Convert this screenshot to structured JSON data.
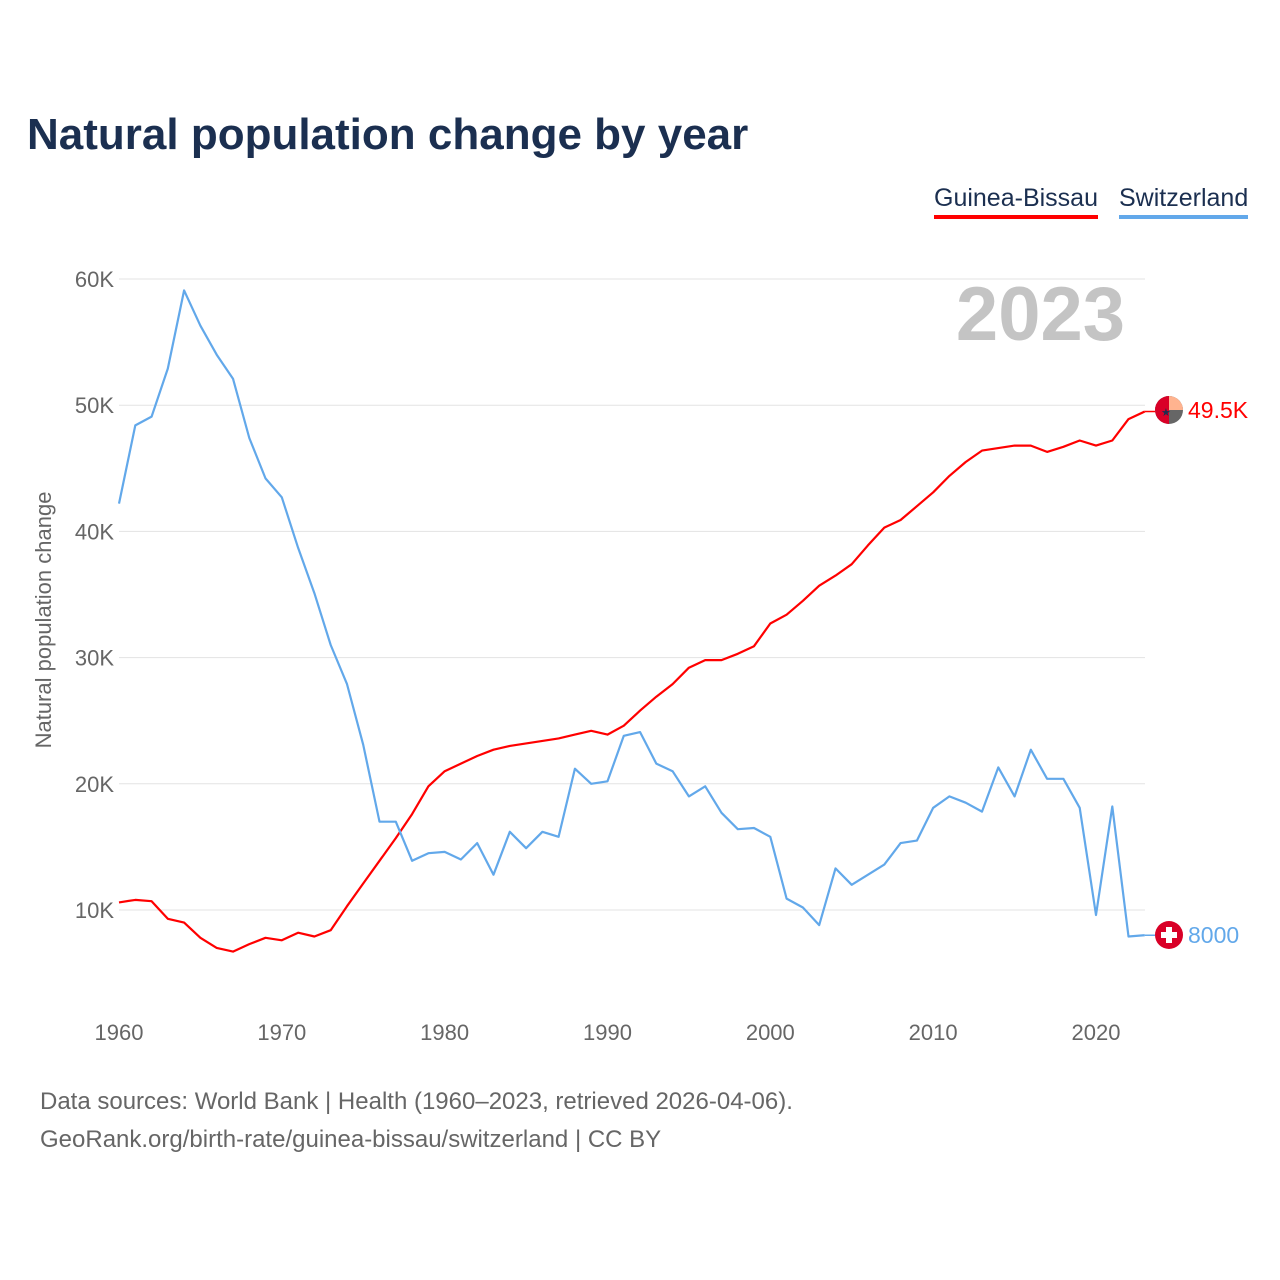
{
  "title": "Natural population change by year",
  "legend": [
    "Guinea-Bissau",
    "Switzerland"
  ],
  "current_year": "2023",
  "end_labels": {
    "guinea_bissau": "49.5K",
    "switzerland": "8000"
  },
  "footer": {
    "line1": "Data sources: World Bank | Health (1960–2023, retrieved 2026-04-06).",
    "line2": "GeoRank.org/birth-rate/guinea-bissau/switzerland | CC BY"
  },
  "colors": {
    "guinea_bissau": "#ff0000",
    "switzerland": "#62a8ea",
    "title": "#1b2f50"
  },
  "chart_data": {
    "type": "line",
    "title": "Natural population change by year",
    "xlabel": "",
    "ylabel": "Natural population change",
    "xlim": [
      1960,
      2023
    ],
    "ylim": [
      0,
      60000
    ],
    "x_ticks": [
      1960,
      1970,
      1980,
      1990,
      2000,
      2010,
      2020
    ],
    "x_tick_labels": [
      "1960",
      "1970",
      "1980",
      "1990",
      "2000",
      "2010",
      "2020"
    ],
    "y_ticks": [
      10000,
      20000,
      30000,
      40000,
      50000,
      60000
    ],
    "y_tick_labels": [
      "10K",
      "20K",
      "30K",
      "40K",
      "50K",
      "60K"
    ],
    "grid": true,
    "legend_position": "top-right",
    "x_start": 1960,
    "series": [
      {
        "name": "Guinea-Bissau",
        "color": "#ff0000",
        "values": [
          10600,
          10800,
          10700,
          9300,
          9000,
          7800,
          7000,
          6700,
          7300,
          7800,
          7600,
          8200,
          7900,
          8400,
          10300,
          12100,
          13900,
          15700,
          17600,
          19800,
          21000,
          21600,
          22200,
          22700,
          23000,
          23200,
          23400,
          23600,
          23900,
          24200,
          23900,
          24600,
          25800,
          26900,
          27900,
          29200,
          29800,
          29800,
          30300,
          30900,
          32700,
          33400,
          34500,
          35700,
          36500,
          37400,
          38900,
          40300,
          40900,
          42000,
          43100,
          44400,
          45500,
          46400,
          46600,
          46800,
          46800,
          46300,
          46700,
          47200,
          46800,
          47200,
          48900,
          49500
        ]
      },
      {
        "name": "Switzerland",
        "color": "#62a8ea",
        "values": [
          42200,
          48400,
          49100,
          52900,
          59100,
          56300,
          54000,
          52100,
          47400,
          44200,
          42700,
          38700,
          35100,
          31000,
          27900,
          23100,
          17000,
          17000,
          13900,
          14500,
          14600,
          14000,
          15300,
          12800,
          16200,
          14900,
          16200,
          15800,
          21200,
          20000,
          20200,
          23800,
          24100,
          21600,
          21000,
          19000,
          19800,
          17700,
          16400,
          16500,
          15800,
          10900,
          10200,
          8800,
          13300,
          12000,
          12800,
          13600,
          15300,
          15500,
          18100,
          19000,
          18500,
          17800,
          21300,
          19000,
          22700,
          20400,
          20400,
          18100,
          9600,
          18200,
          7900,
          8000
        ]
      }
    ]
  }
}
